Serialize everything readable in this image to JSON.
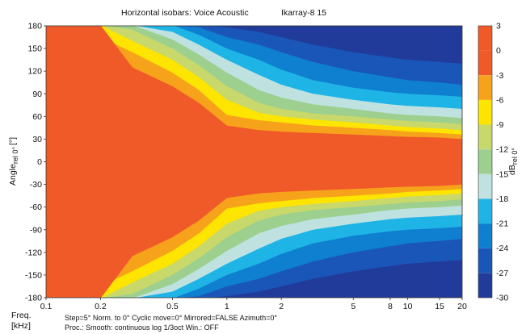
{
  "chart_data": {
    "type": "heatmap",
    "title": "Horizontal isobars: Voice Acoustic",
    "title_suffix": "Ikarray-8  15",
    "ylabel_main": "Angle",
    "ylabel_sub": "rel 0°",
    "ylabel_unit": "[°]",
    "xlabel_line1": "Freq.",
    "xlabel_line2": "[kHz]",
    "xscale": "log",
    "xlim": [
      0.1,
      20
    ],
    "ylim": [
      -180,
      180
    ],
    "x_ticks": [
      {
        "value": 0.1,
        "label": "0.1"
      },
      {
        "value": 0.2,
        "label": "0.2"
      },
      {
        "value": 0.5,
        "label": "0.5"
      },
      {
        "value": 1,
        "label": "1"
      },
      {
        "value": 2,
        "label": "2"
      },
      {
        "value": 5,
        "label": "5"
      },
      {
        "value": 8,
        "label": "8"
      },
      {
        "value": 10,
        "label": "10"
      },
      {
        "value": 15,
        "label": "15"
      },
      {
        "value": 20,
        "label": "20"
      }
    ],
    "y_ticks": [
      {
        "value": 180,
        "label": "180"
      },
      {
        "value": 150,
        "label": "150"
      },
      {
        "value": 120,
        "label": "120"
      },
      {
        "value": 90,
        "label": "90"
      },
      {
        "value": 60,
        "label": "60"
      },
      {
        "value": 30,
        "label": "30"
      },
      {
        "value": 0,
        "label": "0"
      },
      {
        "value": -30,
        "label": "-30"
      },
      {
        "value": -60,
        "label": "-60"
      },
      {
        "value": -90,
        "label": "-90"
      },
      {
        "value": -120,
        "label": "-120"
      },
      {
        "value": -150,
        "label": "-150"
      },
      {
        "value": -180,
        "label": "-180"
      }
    ],
    "colorbar": {
      "unit_main": "dB",
      "unit_sub": "rel 0°",
      "range": [
        -30,
        3
      ],
      "ticks": [
        {
          "value": 3,
          "label": "3"
        },
        {
          "value": 0,
          "label": "0"
        },
        {
          "value": -3,
          "label": "-3"
        },
        {
          "value": -6,
          "label": "-6"
        },
        {
          "value": -9,
          "label": "-9"
        },
        {
          "value": -12,
          "label": "-12"
        },
        {
          "value": -15,
          "label": "-15"
        },
        {
          "value": -18,
          "label": "-18"
        },
        {
          "value": -21,
          "label": "-21"
        },
        {
          "value": -24,
          "label": "-24"
        },
        {
          "value": -27,
          "label": "-27"
        },
        {
          "value": -30,
          "label": "-30"
        }
      ],
      "bands": [
        {
          "from": 0,
          "to": 3,
          "color": "#f05a28"
        },
        {
          "from": -3,
          "to": 0,
          "color": "#f05a28"
        },
        {
          "from": -6,
          "to": -3,
          "color": "#f7a21b"
        },
        {
          "from": -9,
          "to": -6,
          "color": "#fde500"
        },
        {
          "from": -12,
          "to": -9,
          "color": "#c8d86a"
        },
        {
          "from": -15,
          "to": -12,
          "color": "#9dcf8e"
        },
        {
          "from": -18,
          "to": -15,
          "color": "#bfe2e0"
        },
        {
          "from": -21,
          "to": -18,
          "color": "#1fb4e6"
        },
        {
          "from": -24,
          "to": -21,
          "color": "#0f7fd0"
        },
        {
          "from": -27,
          "to": -24,
          "color": "#1a56b8"
        },
        {
          "from": -30,
          "to": -27,
          "color": "#213b9a"
        }
      ]
    },
    "contour_levels_db": [
      -3,
      -6,
      -9,
      -12,
      -15,
      -18,
      -21,
      -24,
      -27
    ],
    "beamwidth_boundaries_deg": {
      "freq_khz": [
        0.1,
        0.15,
        0.2,
        0.3,
        0.5,
        0.7,
        1.0,
        1.5,
        2.0,
        3.0,
        5.0,
        8.0,
        10.0,
        15.0,
        20.0
      ],
      "level_-3": [
        181,
        181,
        181,
        125,
        100,
        78,
        48,
        42,
        40,
        38,
        36,
        34,
        33,
        32,
        30
      ],
      "level_-6": [
        181,
        181,
        165,
        145,
        118,
        95,
        62,
        55,
        52,
        48,
        45,
        42,
        40,
        38,
        36
      ],
      "level_-9": [
        181,
        181,
        181,
        160,
        135,
        112,
        82,
        65,
        60,
        56,
        52,
        48,
        46,
        44,
        42
      ],
      "level_-12": [
        181,
        181,
        181,
        175,
        150,
        128,
        100,
        78,
        70,
        64,
        60,
        56,
        54,
        52,
        50
      ],
      "level_-15": [
        181,
        181,
        181,
        181,
        162,
        142,
        118,
        95,
        85,
        76,
        70,
        64,
        62,
        60,
        58
      ],
      "level_-18": [
        181,
        181,
        181,
        181,
        172,
        155,
        135,
        115,
        102,
        90,
        82,
        76,
        74,
        72,
        70
      ],
      "level_-21": [
        181,
        181,
        181,
        181,
        181,
        168,
        150,
        135,
        122,
        108,
        98,
        92,
        90,
        88,
        86
      ],
      "level_-24": [
        181,
        181,
        181,
        181,
        181,
        178,
        165,
        155,
        145,
        132,
        120,
        112,
        108,
        105,
        102
      ],
      "level_-27": [
        181,
        181,
        181,
        181,
        181,
        181,
        178,
        172,
        165,
        155,
        145,
        138,
        135,
        132,
        130
      ]
    },
    "footer_line1": "Step=5°   Norm. to 0°   Cyclic move=0°   Mirrored=FALSE   Azimuth=0°",
    "footer_line2": "Proc.: Smooth: continuous log 1/3oct    Win.: OFF"
  }
}
